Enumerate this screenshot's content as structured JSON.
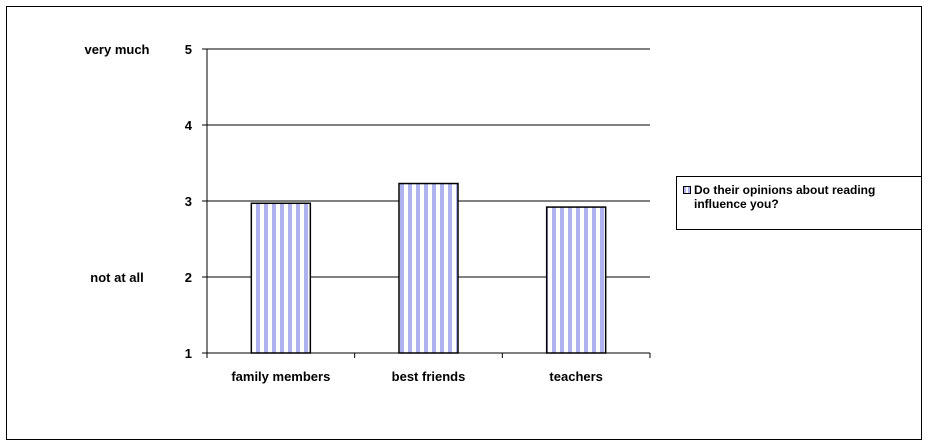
{
  "chart_data": {
    "type": "bar",
    "title": "",
    "xlabel": "",
    "ylabel": "",
    "categories": [
      "family members",
      "best friends",
      "teachers"
    ],
    "series": [
      {
        "name": "Do their opinions about reading influence you?",
        "values": [
          2.97,
          3.23,
          2.92
        ]
      }
    ],
    "ylim": [
      1,
      5
    ],
    "yticks": [
      "1",
      "2",
      "3",
      "4",
      "5"
    ],
    "y_anchor_labels": [
      {
        "text": "very much",
        "at": 5
      },
      {
        "text": "not at all",
        "at": 2
      }
    ],
    "grid": true,
    "legend_position": "right",
    "colors": {
      "bar_stripe": "#aeb2ee",
      "bar_base": "#ffffff",
      "outline": "#000000"
    }
  }
}
